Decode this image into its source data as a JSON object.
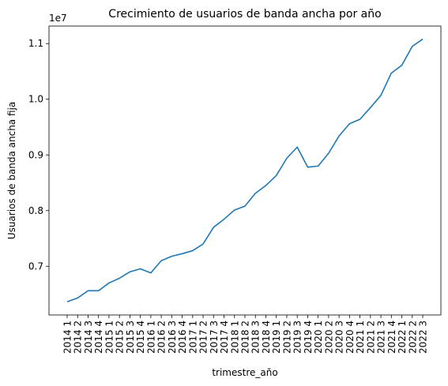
{
  "chart_data": {
    "type": "line",
    "title": "Crecimiento de usuarios de banda ancha por año",
    "xlabel": "trimestre_año",
    "ylabel": "Usuarios de banda ancha fija",
    "y_offset_label": "1e7",
    "categories": [
      "2014 1",
      "2014 2",
      "2014 3",
      "2014 4",
      "2015 1",
      "2015 2",
      "2015 3",
      "2015 4",
      "2016 1",
      "2016 2",
      "2016 3",
      "2016 4",
      "2017 1",
      "2017 2",
      "2017 3",
      "2017 4",
      "2018 1",
      "2018 2",
      "2018 3",
      "2018 4",
      "2019 1",
      "2019 2",
      "2019 3",
      "2019 4",
      "2020 1",
      "2020 2",
      "2020 3",
      "2020 4",
      "2021 1",
      "2021 2",
      "2021 3",
      "2021 4",
      "2022 1",
      "2022 2",
      "2022 3"
    ],
    "series": [
      {
        "color": "#1f77b4",
        "values": [
          6362000,
          6430000,
          6560000,
          6560000,
          6700000,
          6785000,
          6900000,
          6955000,
          6880000,
          7100000,
          7180000,
          7225000,
          7280000,
          7400000,
          7700000,
          7845000,
          8010000,
          8080000,
          8310000,
          8450000,
          8630000,
          8940000,
          9140000,
          8780000,
          8800000,
          9030000,
          9340000,
          9560000,
          9640000,
          9850000,
          10070000,
          10470000,
          10610000,
          10950000,
          11080000
        ]
      }
    ],
    "yticks": [
      7000000,
      8000000,
      9000000,
      10000000,
      11000000
    ],
    "ytick_labels": [
      "0.7",
      "0.8",
      "0.9",
      "1.0",
      "1.1"
    ],
    "ylim": [
      6125000,
      11315000
    ],
    "grid": false,
    "legend": false
  }
}
